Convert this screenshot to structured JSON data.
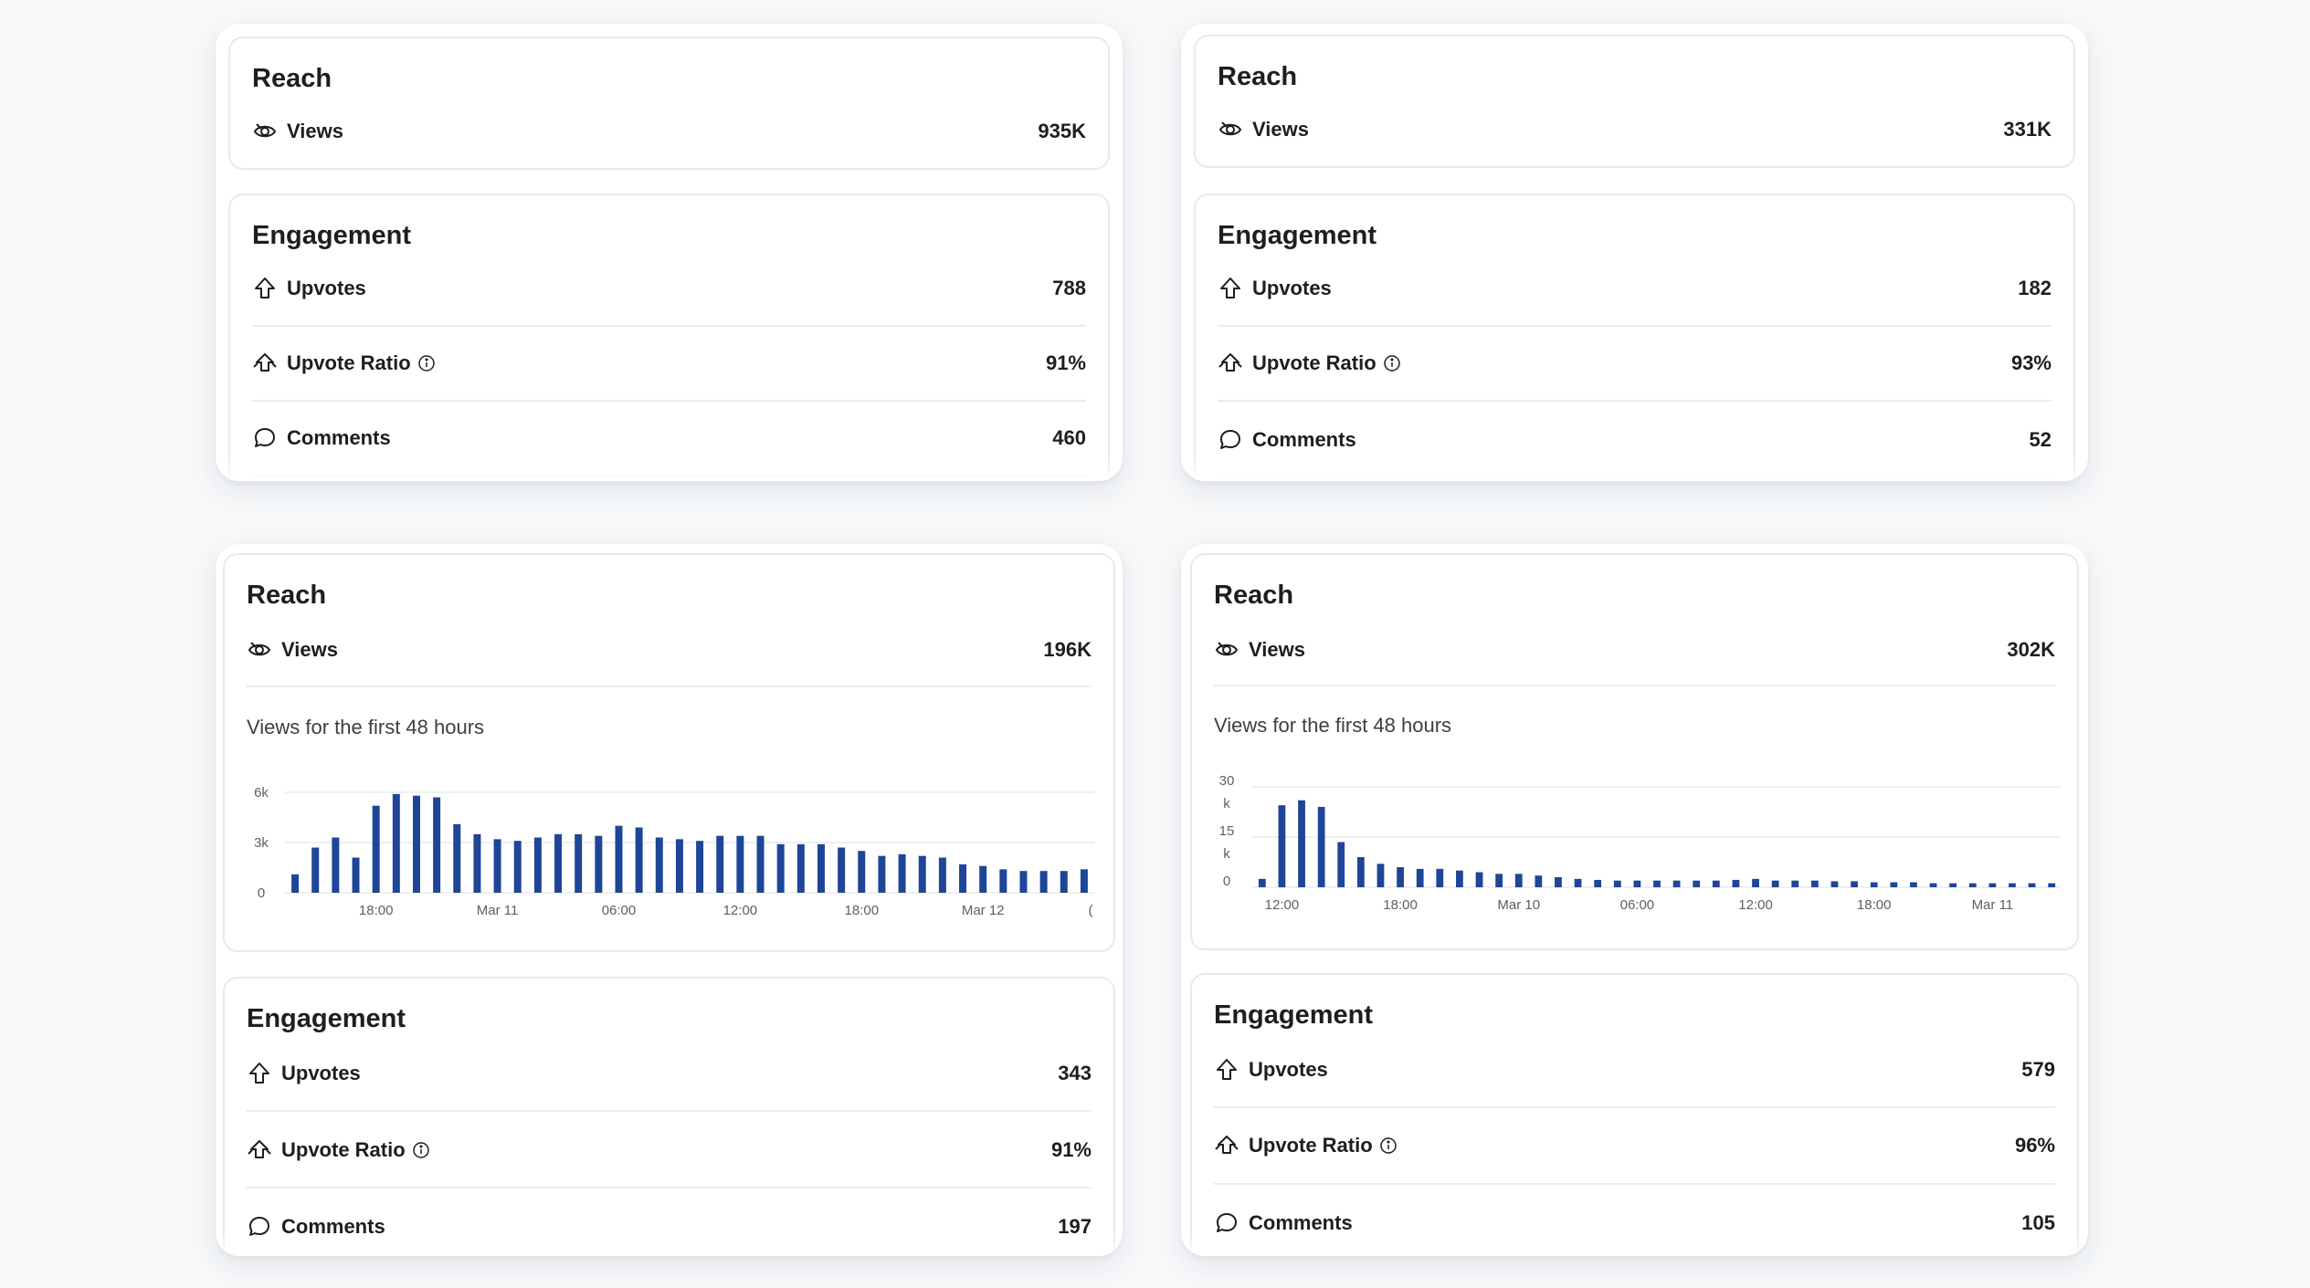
{
  "panels": [
    {
      "reach": {
        "title": "Reach",
        "views_label": "Views",
        "views_value": "935K"
      },
      "engagement": {
        "title": "Engagement",
        "upvotes_label": "Upvotes",
        "upvotes_value": "788",
        "ratio_label": "Upvote Ratio",
        "ratio_value": "91%",
        "comments_label": "Comments",
        "comments_value": "460"
      }
    },
    {
      "reach": {
        "title": "Reach",
        "views_label": "Views",
        "views_value": "331K"
      },
      "engagement": {
        "title": "Engagement",
        "upvotes_label": "Upvotes",
        "upvotes_value": "182",
        "ratio_label": "Upvote Ratio",
        "ratio_value": "93%",
        "comments_label": "Comments",
        "comments_value": "52"
      }
    },
    {
      "reach": {
        "title": "Reach",
        "views_label": "Views",
        "views_value": "196K",
        "chart_subtitle": "Views for the first 48 hours"
      },
      "engagement": {
        "title": "Engagement",
        "upvotes_label": "Upvotes",
        "upvotes_value": "343",
        "ratio_label": "Upvote Ratio",
        "ratio_value": "91%",
        "comments_label": "Comments",
        "comments_value": "197"
      }
    },
    {
      "reach": {
        "title": "Reach",
        "views_label": "Views",
        "views_value": "302K",
        "chart_subtitle": "Views for the first 48 hours"
      },
      "engagement": {
        "title": "Engagement",
        "upvotes_label": "Upvotes",
        "upvotes_value": "579",
        "ratio_label": "Upvote Ratio",
        "ratio_value": "96%",
        "comments_label": "Comments",
        "comments_value": "105"
      }
    }
  ],
  "icons": {
    "views": "eye-icon",
    "upvotes": "upvote-arrow-icon",
    "ratio": "upvote-ratio-icon",
    "comments": "comment-bubble-icon",
    "info": "info-icon"
  },
  "colors": {
    "bar": "#1e4597"
  },
  "chart_data": [
    {
      "type": "bar",
      "ylim": [
        0,
        6000
      ],
      "yticks": [
        {
          "value": 0,
          "label": "0"
        },
        {
          "value": 3000,
          "label": "3k"
        },
        {
          "value": 6000,
          "label": "6k"
        }
      ],
      "xticks": [
        {
          "index": 4,
          "label": "18:00"
        },
        {
          "index": 10,
          "label": "Mar 11"
        },
        {
          "index": 16,
          "label": "06:00"
        },
        {
          "index": 22,
          "label": "12:00"
        },
        {
          "index": 28,
          "label": "18:00"
        },
        {
          "index": 34,
          "label": "Mar 12"
        },
        {
          "index": 40,
          "label": "("
        }
      ],
      "values": [
        1100,
        2700,
        3300,
        2100,
        5200,
        5900,
        5800,
        5700,
        4100,
        3500,
        3200,
        3100,
        3300,
        3500,
        3500,
        3400,
        4000,
        3900,
        3300,
        3200,
        3100,
        3400,
        3400,
        3400,
        2900,
        2900,
        2900,
        2700,
        2500,
        2200,
        2300,
        2200,
        2100,
        1700,
        1600,
        1400,
        1300,
        1300,
        1300,
        1400
      ]
    },
    {
      "type": "bar",
      "ylim": [
        0,
        30000
      ],
      "yticks": [
        {
          "value": 0,
          "label": "0"
        },
        {
          "value": 15000,
          "label": "15"
        },
        {
          "value": 30000,
          "label": "30"
        }
      ],
      "ytick_suffix": "k",
      "xticks": [
        {
          "index": 1,
          "label": "12:00"
        },
        {
          "index": 7,
          "label": "18:00"
        },
        {
          "index": 13,
          "label": "Mar 10"
        },
        {
          "index": 19,
          "label": "06:00"
        },
        {
          "index": 25,
          "label": "12:00"
        },
        {
          "index": 31,
          "label": "18:00"
        },
        {
          "index": 37,
          "label": "Mar 11"
        }
      ],
      "values": [
        2500,
        24500,
        26000,
        24000,
        13500,
        9000,
        7000,
        6000,
        5500,
        5500,
        5000,
        4500,
        4000,
        4000,
        3500,
        3000,
        2500,
        2200,
        2000,
        2000,
        2000,
        2000,
        2000,
        2000,
        2200,
        2500,
        2000,
        2000,
        2000,
        1800,
        1800,
        1500,
        1500,
        1500,
        1200,
        1200,
        1200,
        1200,
        1200,
        1200,
        1200
      ]
    }
  ]
}
